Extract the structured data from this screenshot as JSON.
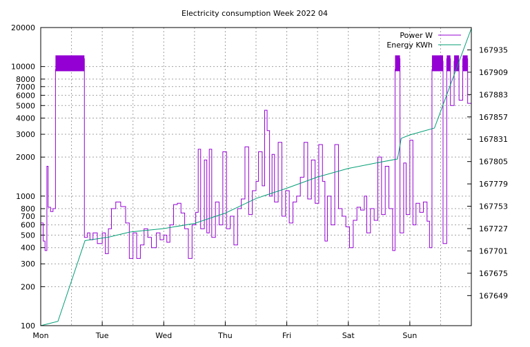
{
  "chart_data": {
    "type": "line",
    "title": "Electricity consumption Week 2022 04",
    "xlabel": "",
    "ylabel": "",
    "y_scale": "log",
    "ylim": [
      100,
      20000
    ],
    "y2lim": [
      167614,
      167961
    ],
    "y_ticks": [
      100,
      200,
      300,
      400,
      500,
      600,
      700,
      800,
      1000,
      2000,
      3000,
      4000,
      5000,
      6000,
      7000,
      8000,
      10000,
      20000
    ],
    "y2_ticks": [
      167649,
      167675,
      167701,
      167727,
      167753,
      167779,
      167805,
      167831,
      167857,
      167883,
      167909,
      167935
    ],
    "x_ticks": [
      "Mon",
      "Tue",
      "Wed",
      "Thu",
      "Fri",
      "Sat",
      "Sun"
    ],
    "xlim_days": [
      0,
      7
    ],
    "grid": true,
    "legend_position": "top-right",
    "series": [
      {
        "name": "Power W",
        "axis": "y1",
        "color": "#9400d3",
        "points": [
          [
            0.0,
            620
          ],
          [
            0.04,
            450
          ],
          [
            0.07,
            380
          ],
          [
            0.1,
            1700
          ],
          [
            0.12,
            820
          ],
          [
            0.16,
            760
          ],
          [
            0.2,
            800
          ],
          [
            0.24,
            9500
          ],
          [
            0.3,
            11500
          ],
          [
            0.4,
            11000
          ],
          [
            0.5,
            11500
          ],
          [
            0.6,
            11000
          ],
          [
            0.66,
            11500
          ],
          [
            0.71,
            480
          ],
          [
            0.76,
            520
          ],
          [
            0.8,
            460
          ],
          [
            0.85,
            520
          ],
          [
            0.92,
            430
          ],
          [
            1.0,
            520
          ],
          [
            1.05,
            360
          ],
          [
            1.1,
            560
          ],
          [
            1.15,
            800
          ],
          [
            1.22,
            900
          ],
          [
            1.3,
            830
          ],
          [
            1.38,
            620
          ],
          [
            1.44,
            330
          ],
          [
            1.5,
            520
          ],
          [
            1.56,
            330
          ],
          [
            1.62,
            420
          ],
          [
            1.68,
            560
          ],
          [
            1.74,
            480
          ],
          [
            1.8,
            400
          ],
          [
            1.88,
            520
          ],
          [
            1.94,
            460
          ],
          [
            2.0,
            500
          ],
          [
            2.05,
            440
          ],
          [
            2.1,
            600
          ],
          [
            2.16,
            860
          ],
          [
            2.22,
            880
          ],
          [
            2.28,
            740
          ],
          [
            2.34,
            560
          ],
          [
            2.4,
            330
          ],
          [
            2.46,
            600
          ],
          [
            2.52,
            750
          ],
          [
            2.56,
            2300
          ],
          [
            2.6,
            560
          ],
          [
            2.66,
            1900
          ],
          [
            2.7,
            520
          ],
          [
            2.74,
            2300
          ],
          [
            2.78,
            480
          ],
          [
            2.84,
            900
          ],
          [
            2.9,
            600
          ],
          [
            2.96,
            2200
          ],
          [
            3.02,
            560
          ],
          [
            3.08,
            700
          ],
          [
            3.14,
            420
          ],
          [
            3.2,
            800
          ],
          [
            3.26,
            950
          ],
          [
            3.32,
            2400
          ],
          [
            3.38,
            720
          ],
          [
            3.44,
            1100
          ],
          [
            3.5,
            1300
          ],
          [
            3.54,
            2200
          ],
          [
            3.6,
            1200
          ],
          [
            3.64,
            4600
          ],
          [
            3.68,
            3200
          ],
          [
            3.72,
            1000
          ],
          [
            3.76,
            2100
          ],
          [
            3.8,
            900
          ],
          [
            3.86,
            2600
          ],
          [
            3.92,
            700
          ],
          [
            3.98,
            1100
          ],
          [
            4.04,
            620
          ],
          [
            4.1,
            900
          ],
          [
            4.16,
            1000
          ],
          [
            4.22,
            1400
          ],
          [
            4.28,
            2600
          ],
          [
            4.34,
            950
          ],
          [
            4.4,
            1900
          ],
          [
            4.46,
            880
          ],
          [
            4.52,
            2500
          ],
          [
            4.58,
            1300
          ],
          [
            4.62,
            450
          ],
          [
            4.66,
            1000
          ],
          [
            4.72,
            600
          ],
          [
            4.78,
            2500
          ],
          [
            4.84,
            800
          ],
          [
            4.9,
            700
          ],
          [
            4.96,
            580
          ],
          [
            5.02,
            400
          ],
          [
            5.08,
            650
          ],
          [
            5.14,
            820
          ],
          [
            5.2,
            780
          ],
          [
            5.26,
            1000
          ],
          [
            5.3,
            520
          ],
          [
            5.36,
            800
          ],
          [
            5.42,
            650
          ],
          [
            5.48,
            2000
          ],
          [
            5.54,
            720
          ],
          [
            5.6,
            1700
          ],
          [
            5.66,
            800
          ],
          [
            5.72,
            380
          ],
          [
            5.76,
            9500
          ],
          [
            5.8,
            11500
          ],
          [
            5.84,
            520
          ],
          [
            5.9,
            1800
          ],
          [
            5.94,
            720
          ],
          [
            6.0,
            2700
          ],
          [
            6.05,
            600
          ],
          [
            6.1,
            880
          ],
          [
            6.16,
            750
          ],
          [
            6.22,
            900
          ],
          [
            6.28,
            640
          ],
          [
            6.32,
            400
          ],
          [
            6.36,
            9500
          ],
          [
            6.42,
            11500
          ],
          [
            6.5,
            11000
          ],
          [
            6.54,
            430
          ],
          [
            6.6,
            11500
          ],
          [
            6.66,
            5000
          ],
          [
            6.72,
            11000
          ],
          [
            6.8,
            5500
          ],
          [
            6.86,
            11500
          ],
          [
            6.94,
            5200
          ],
          [
            7.0,
            5200
          ]
        ]
      },
      {
        "name": "Energy KWh",
        "axis": "y2",
        "color": "#009e73",
        "points": [
          [
            0.0,
            167614
          ],
          [
            0.28,
            167619
          ],
          [
            0.72,
            167713
          ],
          [
            1.1,
            167717
          ],
          [
            1.45,
            167723
          ],
          [
            2.0,
            167727
          ],
          [
            2.5,
            167733
          ],
          [
            3.0,
            167745
          ],
          [
            3.5,
            167762
          ],
          [
            4.0,
            167774
          ],
          [
            4.5,
            167787
          ],
          [
            5.0,
            167797
          ],
          [
            5.5,
            167804
          ],
          [
            5.8,
            167808
          ],
          [
            5.86,
            167832
          ],
          [
            6.0,
            167836
          ],
          [
            6.4,
            167844
          ],
          [
            7.0,
            167960
          ]
        ]
      }
    ]
  }
}
